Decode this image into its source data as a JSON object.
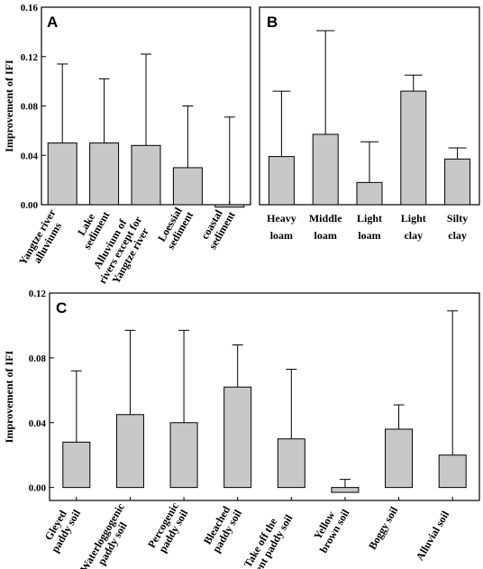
{
  "chart_data": [
    {
      "type": "bar",
      "panel": "A",
      "ylabel": "Improvement of IFI",
      "ylim": [
        0,
        0.16
      ],
      "yticks": [
        "0.00",
        "0.04",
        "0.08",
        "0.12",
        "0.16"
      ],
      "categories": [
        [
          "Yangtze river",
          "alluviums"
        ],
        [
          "Lake",
          "sediment"
        ],
        [
          "Alluvium of",
          "rivers except for",
          "Yangtze river"
        ],
        [
          "Loessial",
          "sediment"
        ],
        [
          "coastal",
          "sediment"
        ]
      ],
      "values": [
        0.05,
        0.05,
        0.048,
        0.03,
        -0.002
      ],
      "errors_upper": [
        0.114,
        0.102,
        0.122,
        0.08,
        0.071
      ],
      "label_orientation": "rotated"
    },
    {
      "type": "bar",
      "panel": "B",
      "ylim": [
        0,
        0.16
      ],
      "categories": [
        [
          "Heavy",
          "loam"
        ],
        [
          "Middle",
          "loam"
        ],
        [
          "Light",
          "loam"
        ],
        [
          "Light",
          "clay"
        ],
        [
          "Silty",
          "clay"
        ]
      ],
      "values": [
        0.039,
        0.057,
        0.018,
        0.092,
        0.037
      ],
      "errors_upper": [
        0.092,
        0.141,
        0.051,
        0.105,
        0.046
      ],
      "label_orientation": "horizontal"
    },
    {
      "type": "bar",
      "panel": "C",
      "ylabel": "Improvement of IFI",
      "ylim": [
        -0.008,
        0.12
      ],
      "yticks": [
        "0.00",
        "0.04",
        "0.08",
        "0.12"
      ],
      "categories": [
        [
          "Gleyed",
          "paddy soil"
        ],
        [
          "Waterloggogenic",
          "paddy soil"
        ],
        [
          "Percogenic",
          "paddy soil"
        ],
        [
          "Bleached",
          "paddy soil"
        ],
        [
          "Take off the",
          "latent paddy soil"
        ],
        [
          "Yellow",
          "brown soil"
        ],
        [
          "Boggy soil"
        ],
        [
          "Alluvial soil"
        ]
      ],
      "values": [
        0.028,
        0.045,
        0.04,
        0.062,
        0.03,
        -0.003,
        0.036,
        0.02
      ],
      "errors_upper": [
        0.072,
        0.097,
        0.097,
        0.088,
        0.073,
        0.005,
        0.051,
        0.109
      ],
      "label_orientation": "rotated"
    }
  ]
}
